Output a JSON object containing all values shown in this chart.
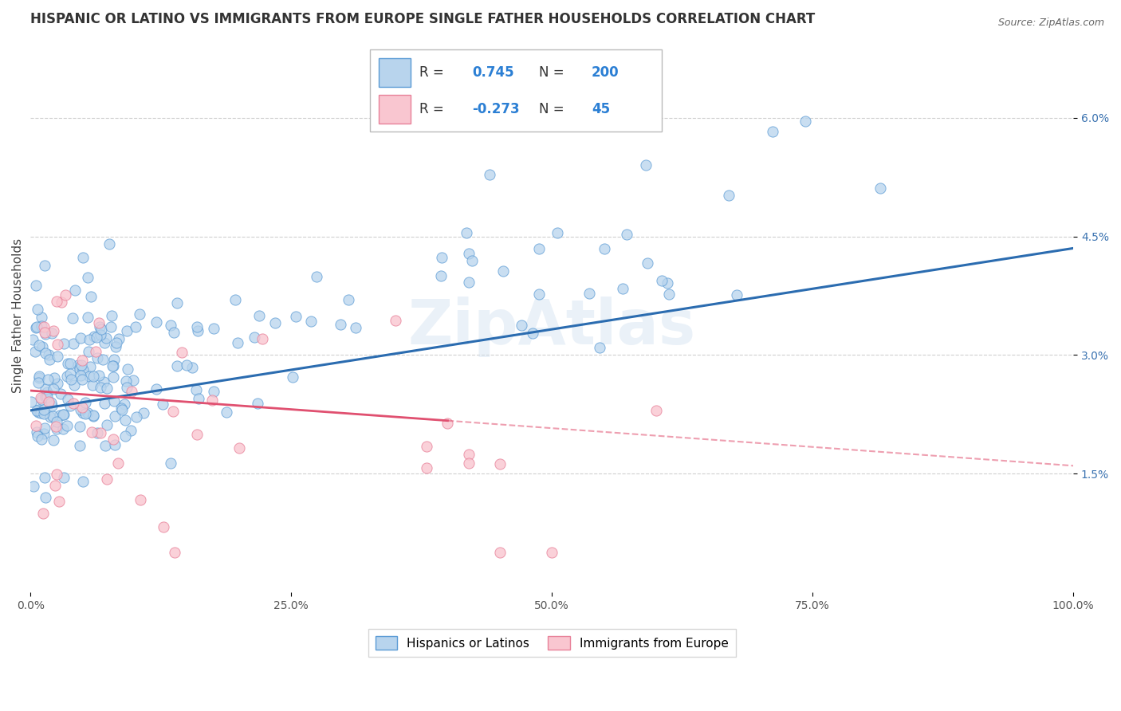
{
  "title": "HISPANIC OR LATINO VS IMMIGRANTS FROM EUROPE SINGLE FATHER HOUSEHOLDS CORRELATION CHART",
  "source_text": "Source: ZipAtlas.com",
  "ylabel": "Single Father Households",
  "watermark": "ZipAtlas",
  "xlim": [
    0,
    100
  ],
  "ylim": [
    0,
    7.0
  ],
  "ytick_positions": [
    1.5,
    3.0,
    4.5,
    6.0
  ],
  "ytick_labels": [
    "1.5%",
    "3.0%",
    "4.5%",
    "6.0%"
  ],
  "xtick_positions": [
    0,
    25,
    50,
    75,
    100
  ],
  "xtick_labels": [
    "0.0%",
    "25.0%",
    "50.0%",
    "75.0%",
    "100.0%"
  ],
  "blue_R": 0.745,
  "blue_N": 200,
  "pink_R": -0.273,
  "pink_N": 45,
  "blue_dot_color": "#b8d4ed",
  "blue_edge_color": "#5b9bd5",
  "blue_line_color": "#2b6cb0",
  "pink_dot_color": "#f9c6d0",
  "pink_edge_color": "#e8829a",
  "pink_line_color": "#e05070",
  "legend_blue_label": "Hispanics or Latinos",
  "legend_pink_label": "Immigrants from Europe",
  "title_fontsize": 12,
  "axis_label_fontsize": 11,
  "tick_fontsize": 10,
  "background_color": "#ffffff",
  "grid_color": "#d0d0d0",
  "blue_line_start_y": 2.3,
  "blue_line_end_y": 4.35,
  "pink_line_start_y": 2.55,
  "pink_line_end_y": 1.6,
  "pink_solid_end_x": 40
}
